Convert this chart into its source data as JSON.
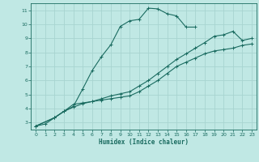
{
  "bg_color": "#c0e8e4",
  "grid_color": "#a8d4d0",
  "line_color": "#1a6b60",
  "marker": "+",
  "xlabel": "Humidex (Indice chaleur)",
  "xlim": [
    -0.5,
    23.5
  ],
  "ylim": [
    2.5,
    11.5
  ],
  "xticks": [
    0,
    1,
    2,
    3,
    4,
    5,
    6,
    7,
    8,
    9,
    10,
    11,
    12,
    13,
    14,
    15,
    16,
    17,
    18,
    19,
    20,
    21,
    22,
    23
  ],
  "yticks": [
    3,
    4,
    5,
    6,
    7,
    8,
    9,
    10,
    11
  ],
  "series": [
    {
      "x": [
        0,
        1,
        2,
        3,
        4,
        5,
        6,
        7,
        8,
        9,
        10,
        11,
        12,
        13,
        14,
        15,
        16,
        17
      ],
      "y": [
        2.75,
        2.9,
        3.35,
        3.8,
        4.15,
        5.4,
        6.7,
        7.7,
        8.55,
        9.85,
        10.25,
        10.35,
        11.15,
        11.1,
        10.75,
        10.6,
        9.8,
        9.8
      ]
    },
    {
      "x": [
        0,
        2,
        3,
        4,
        5,
        6,
        7,
        8,
        9,
        10,
        11,
        12,
        13,
        14,
        15,
        16,
        17,
        18,
        19,
        20,
        21,
        22,
        23
      ],
      "y": [
        2.75,
        3.35,
        3.8,
        4.1,
        4.35,
        4.5,
        4.7,
        4.9,
        5.05,
        5.2,
        5.6,
        6.0,
        6.5,
        7.0,
        7.5,
        7.9,
        8.3,
        8.7,
        9.15,
        9.25,
        9.5,
        8.85,
        9.0
      ]
    },
    {
      "x": [
        0,
        2,
        3,
        4,
        5,
        6,
        7,
        8,
        9,
        10,
        11,
        12,
        13,
        14,
        15,
        16,
        17,
        18,
        19,
        20,
        21,
        22,
        23
      ],
      "y": [
        2.75,
        3.35,
        3.8,
        4.3,
        4.4,
        4.5,
        4.6,
        4.7,
        4.8,
        4.9,
        5.2,
        5.6,
        6.0,
        6.5,
        7.0,
        7.3,
        7.6,
        7.9,
        8.1,
        8.2,
        8.3,
        8.5,
        8.6
      ]
    }
  ]
}
